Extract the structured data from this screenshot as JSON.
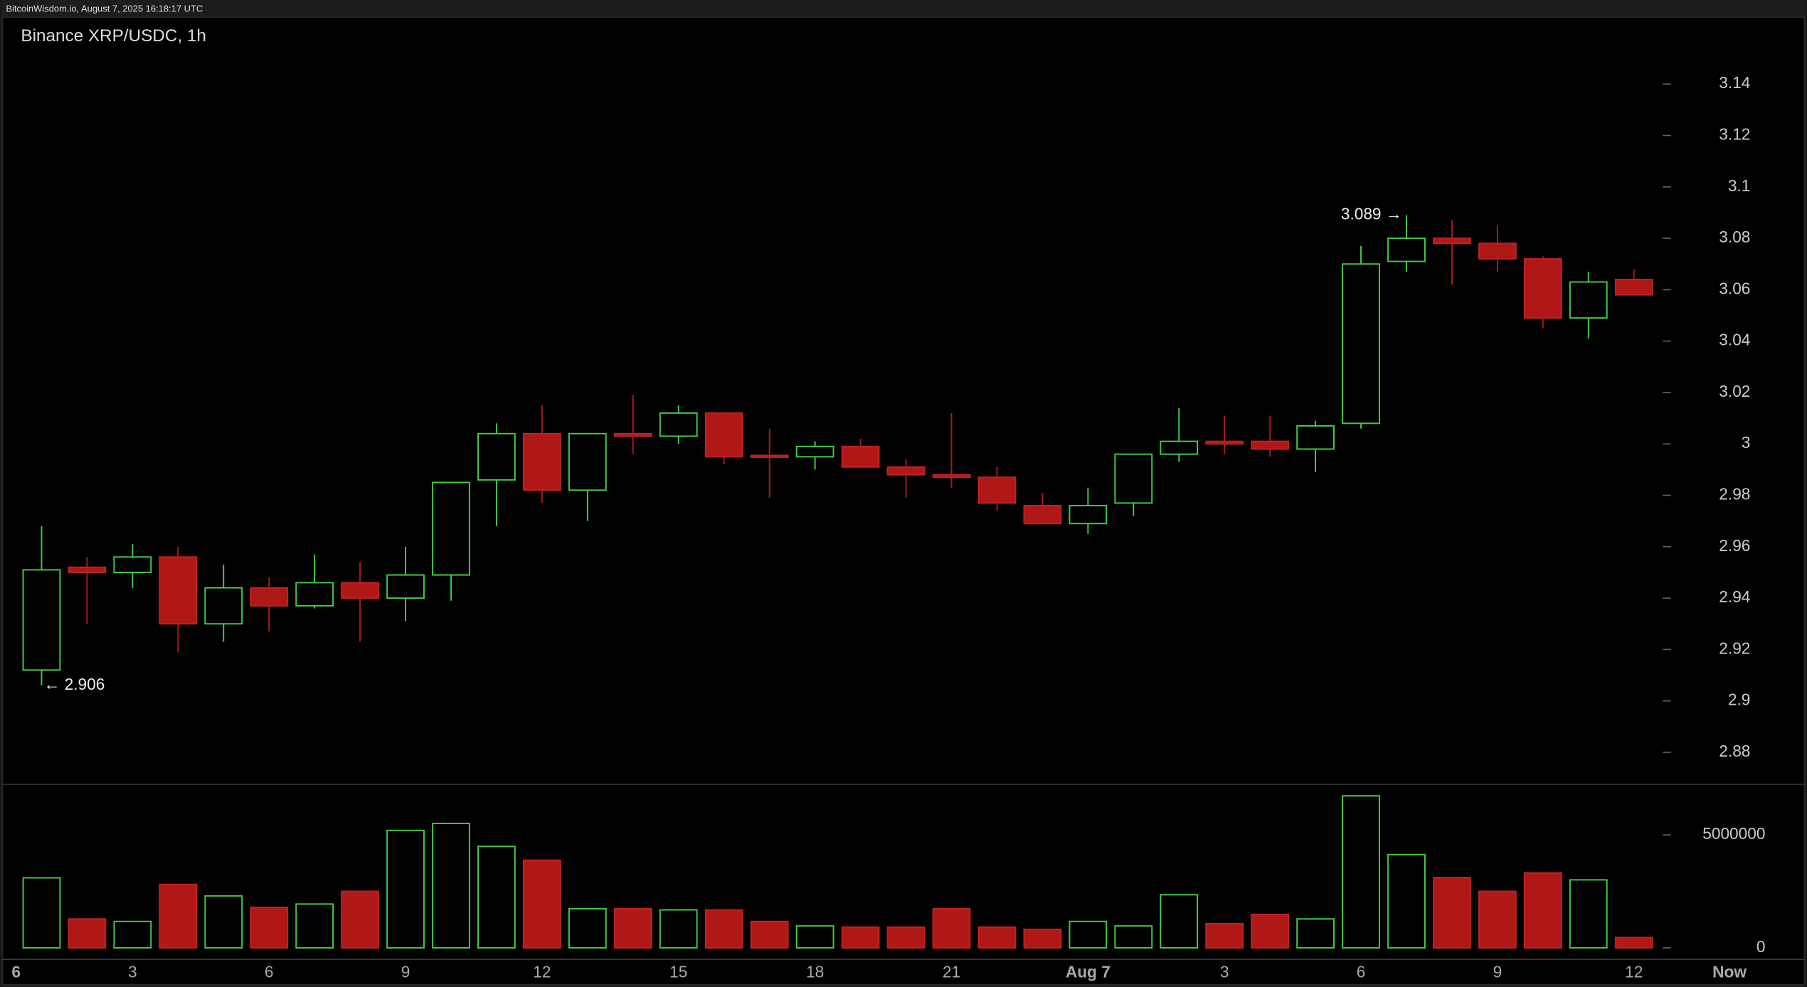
{
  "header": "BitcoinWisdom.io, August 7, 2025 16:18:17 UTC",
  "chart_data": [
    {
      "type": "candlestick",
      "title": "Binance XRP/USDC, 1h",
      "up_color": "#3fcf3f",
      "down_color": "#b01818",
      "x": [
        0,
        1,
        2,
        3,
        4,
        5,
        6,
        7,
        8,
        9,
        10,
        11,
        12,
        13,
        14,
        15,
        16,
        17,
        18,
        19,
        20,
        21,
        22,
        23,
        24,
        25,
        26,
        27,
        28,
        29,
        30,
        31,
        32,
        33,
        34,
        35
      ],
      "open": [
        2.912,
        2.952,
        2.95,
        2.956,
        2.93,
        2.944,
        2.937,
        2.946,
        2.94,
        2.949,
        2.986,
        3.004,
        2.982,
        3.004,
        3.003,
        3.012,
        2.9955,
        2.995,
        2.999,
        2.991,
        2.988,
        2.987,
        2.976,
        2.969,
        2.977,
        2.996,
        3.001,
        3.001,
        2.998,
        3.008,
        3.071,
        3.08,
        3.078,
        3.072,
        3.049,
        3.064
      ],
      "high": [
        2.968,
        2.956,
        2.961,
        2.96,
        2.953,
        2.948,
        2.957,
        2.954,
        2.96,
        2.985,
        3.008,
        3.015,
        3.004,
        3.019,
        3.015,
        3.012,
        3.006,
        3.001,
        3.002,
        2.994,
        3.012,
        2.991,
        2.981,
        2.983,
        2.996,
        3.014,
        3.011,
        3.011,
        3.009,
        3.077,
        3.089,
        3.087,
        3.085,
        3.073,
        3.067,
        3.068
      ],
      "low": [
        2.906,
        2.93,
        2.944,
        2.919,
        2.923,
        2.927,
        2.936,
        2.923,
        2.931,
        2.939,
        2.968,
        2.977,
        2.97,
        2.996,
        3.0,
        2.992,
        2.979,
        2.99,
        2.991,
        2.979,
        2.983,
        2.974,
        2.969,
        2.965,
        2.972,
        2.993,
        2.996,
        2.995,
        2.989,
        3.006,
        3.067,
        3.062,
        3.067,
        3.045,
        3.041,
        3.058
      ],
      "close": [
        2.951,
        2.95,
        2.956,
        2.93,
        2.944,
        2.937,
        2.946,
        2.94,
        2.949,
        2.985,
        3.004,
        2.982,
        3.004,
        3.003,
        3.012,
        2.995,
        2.995,
        2.999,
        2.991,
        2.988,
        2.987,
        2.977,
        2.969,
        2.976,
        2.996,
        3.001,
        3.0,
        2.998,
        3.007,
        3.07,
        3.08,
        3.078,
        3.072,
        3.049,
        3.063,
        3.058
      ],
      "xlim": [
        -0.91,
        38.8
      ],
      "xticks": [
        {
          "value": -1,
          "label": "6"
        },
        {
          "value": 2,
          "label": "3"
        },
        {
          "value": 5,
          "label": "6"
        },
        {
          "value": 8,
          "label": "9"
        },
        {
          "value": 11,
          "label": "12"
        },
        {
          "value": 14,
          "label": "15"
        },
        {
          "value": 17,
          "label": "18"
        },
        {
          "value": 20,
          "label": "21"
        },
        {
          "value": 23,
          "label": "Aug 7"
        },
        {
          "value": 26,
          "label": "3"
        },
        {
          "value": 29,
          "label": "6"
        },
        {
          "value": 32,
          "label": "9"
        },
        {
          "value": 35,
          "label": "12"
        },
        {
          "value": 37.1,
          "label": "Now"
        }
      ],
      "ylim": [
        2.868,
        3.166
      ],
      "yticks": [
        2.88,
        2.9,
        2.92,
        2.94,
        2.96,
        2.98,
        3,
        3.02,
        3.04,
        3.06,
        3.08,
        3.1,
        3.12,
        3.14
      ],
      "annotations": [
        {
          "label": "3.089 →",
          "value": 3.089
        },
        {
          "label": "← 2.906",
          "value": 2.906
        }
      ]
    },
    {
      "type": "bar",
      "values": [
        3100000,
        1280000,
        1170000,
        2810000,
        2300000,
        1790000,
        1940000,
        2500000,
        5200000,
        5510000,
        4490000,
        3880000,
        1730000,
        1730000,
        1680000,
        1680000,
        1170000,
        970000,
        920000,
        920000,
        1730000,
        920000,
        820000,
        1170000,
        970000,
        2350000,
        1070000,
        1480000,
        1280000,
        6730000,
        4130000,
        3110000,
        2500000,
        3320000,
        3010000,
        460000
      ],
      "ylim": [
        -510000,
        7140000
      ],
      "yticks": [
        0,
        5000000
      ]
    }
  ]
}
